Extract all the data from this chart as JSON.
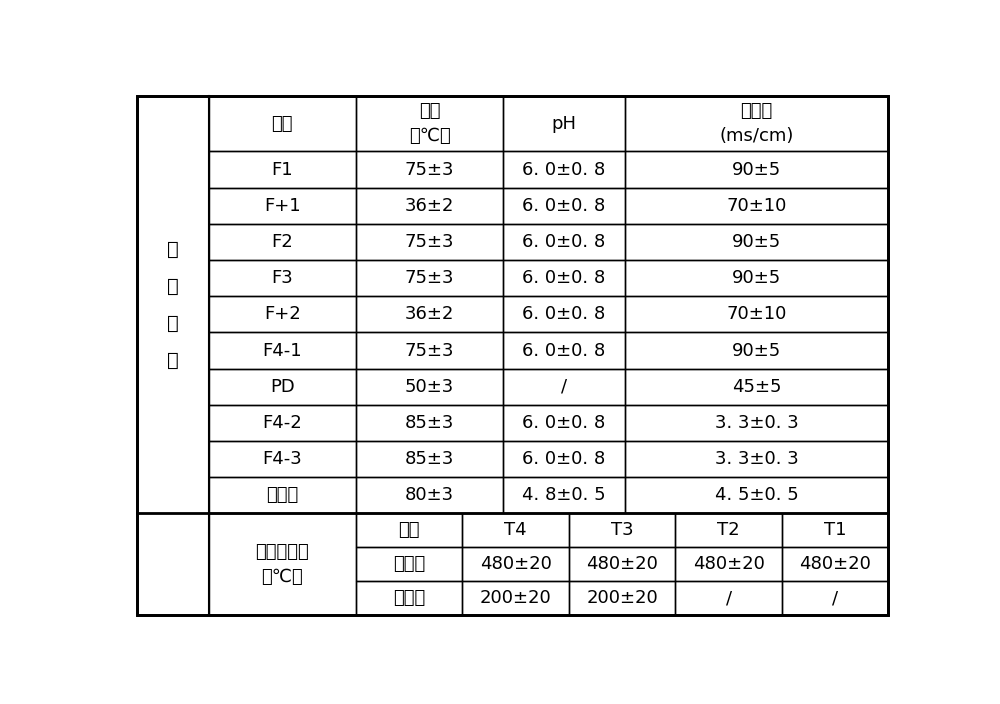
{
  "left_label": "工\n艺\n条\n件",
  "bg_color": "#ffffff",
  "header_row": [
    "工序",
    "温度\n（℃）",
    "pH",
    "电导率\n(ms/cm)"
  ],
  "data_rows": [
    [
      "F1",
      "75±3",
      "6. 0±0. 8",
      "90±5"
    ],
    [
      "F+1",
      "36±2",
      "6. 0±0. 8",
      "70±10"
    ],
    [
      "F2",
      "75±3",
      "6. 0±0. 8",
      "90±5"
    ],
    [
      "F3",
      "75±3",
      "6. 0±0. 8",
      "90±5"
    ],
    [
      "F+2",
      "36±2",
      "6. 0±0. 8",
      "70±10"
    ],
    [
      "F4-1",
      "75±3",
      "6. 0±0. 8",
      "90±5"
    ],
    [
      "PD",
      "50±3",
      "/",
      "45±5"
    ],
    [
      "F4-2",
      "85±3",
      "6. 0±0. 8",
      "3. 3±0. 3"
    ],
    [
      "F4-3",
      "85±3",
      "6. 0±0. 8",
      "3. 3±0. 3"
    ],
    [
      "后处理",
      "80±3",
      "4. 8±0. 5",
      "4. 5±0. 5"
    ]
  ],
  "heat_label": "热处理温度\n（℃）",
  "heat_sub_header": [
    "工序",
    "T4",
    "T3",
    "T2",
    "T1"
  ],
  "heat_rows": [
    [
      "焙烧炉",
      "480±20",
      "480±20",
      "480±20",
      "480±20"
    ],
    [
      "干燥炉",
      "200±20",
      "200±20",
      "/",
      "/"
    ]
  ],
  "font_size": 13,
  "line_color": "#000000",
  "text_color": "#000000",
  "thick_line_rows": [
    1,
    2
  ]
}
